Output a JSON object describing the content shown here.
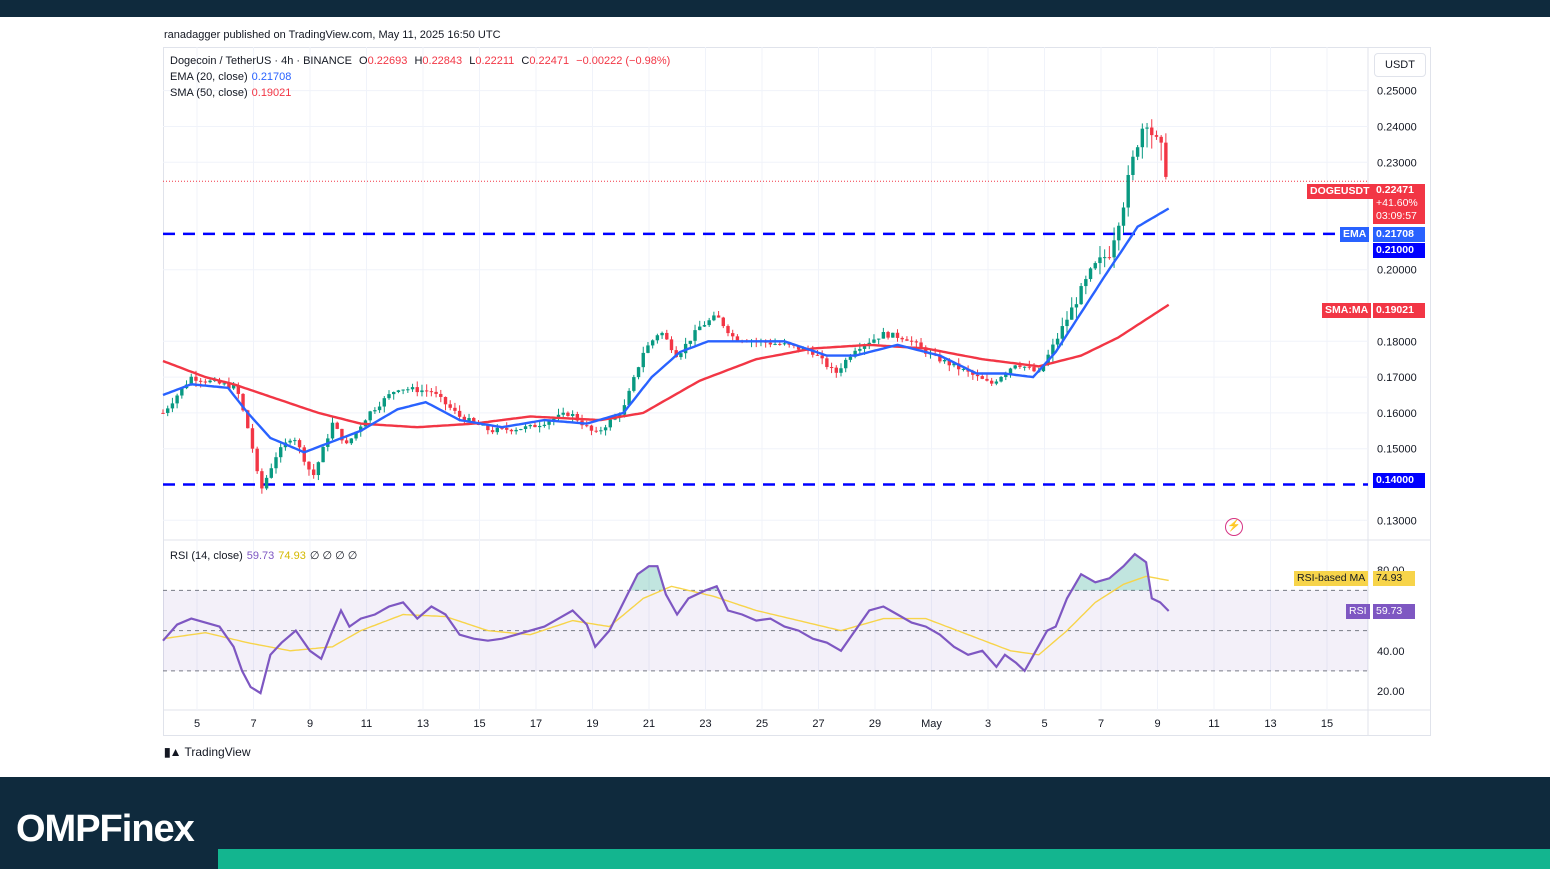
{
  "publisher": "ranadagger published on TradingView.com, May 11, 2025 16:50 UTC",
  "legend": {
    "symbol": "Dogecoin / TetherUS · 4h · BINANCE",
    "o_label": "O",
    "o": "0.22693",
    "h_label": "H",
    "h": "0.22843",
    "l_label": "L",
    "l": "0.22211",
    "c_label": "C",
    "c": "0.22471",
    "change": "−0.00222 (−0.98%)",
    "ema_label": "EMA (20, close)",
    "ema_value": "0.21708",
    "sma_label": "SMA (50, close)",
    "sma_value": "0.19021",
    "rsi_label": "RSI (14, close)",
    "rsi_value": "59.73",
    "rsi_ma_value": "74.93",
    "rsi_extra": "∅ ∅ ∅ ∅"
  },
  "currency": "USDT",
  "tags": {
    "symbol": "DOGEUSDT",
    "price": "0.22471",
    "pct": "+41.60%",
    "countdown": "03:09:57",
    "ema_name": "EMA",
    "ema": "0.21708",
    "level_high": "0.21000",
    "sma_name": "SMA:MA",
    "sma": "0.19021",
    "level_low": "0.14000",
    "rsi_ma_name": "RSI-based MA",
    "rsi_ma": "74.93",
    "rsi_name": "RSI",
    "rsi": "59.73"
  },
  "branding": {
    "tv": "TradingView",
    "footer": "OMPFinex"
  },
  "colors": {
    "up": "#089981",
    "down": "#f23645",
    "ema": "#2962ff",
    "sma": "#f23645",
    "rsi": "#7e57c2",
    "rsi_ma": "#f7d44a",
    "level": "#0000ff",
    "footer": "#0f2a3d",
    "accent": "#13b58f"
  },
  "chart_data": [
    {
      "type": "candlestick",
      "title": "Dogecoin / TetherUS · 4h · BINANCE",
      "ylim": [
        0.1245,
        0.2622
      ],
      "y_ticks": [
        "0.25000",
        "0.24000",
        "0.23000",
        "0.20000",
        "0.18000",
        "0.17000",
        "0.16000",
        "0.15000",
        "0.13000"
      ],
      "x_ticks": [
        "5",
        "7",
        "9",
        "11",
        "13",
        "15",
        "17",
        "19",
        "21",
        "23",
        "25",
        "27",
        "29",
        "May",
        "3",
        "5",
        "7",
        "9",
        "11",
        "13",
        "15"
      ],
      "horizontal_levels": [
        0.21,
        0.14
      ],
      "close_anchors": [
        {
          "t": 0.0,
          "v": 0.16
        },
        {
          "t": 1.0,
          "v": 0.17
        },
        {
          "t": 2.6,
          "v": 0.167
        },
        {
          "t": 3.1,
          "v": 0.153
        },
        {
          "t": 3.45,
          "v": 0.138
        },
        {
          "t": 4.0,
          "v": 0.148
        },
        {
          "t": 4.6,
          "v": 0.154
        },
        {
          "t": 5.3,
          "v": 0.142
        },
        {
          "t": 6.0,
          "v": 0.157
        },
        {
          "t": 6.5,
          "v": 0.151
        },
        {
          "t": 7.3,
          "v": 0.16
        },
        {
          "t": 8.3,
          "v": 0.167
        },
        {
          "t": 9.5,
          "v": 0.166
        },
        {
          "t": 10.5,
          "v": 0.159
        },
        {
          "t": 11.6,
          "v": 0.155
        },
        {
          "t": 13.0,
          "v": 0.156
        },
        {
          "t": 14.4,
          "v": 0.16
        },
        {
          "t": 15.3,
          "v": 0.154
        },
        {
          "t": 16.3,
          "v": 0.161
        },
        {
          "t": 17.0,
          "v": 0.177
        },
        {
          "t": 17.6,
          "v": 0.183
        },
        {
          "t": 18.2,
          "v": 0.176
        },
        {
          "t": 19.0,
          "v": 0.184
        },
        {
          "t": 19.6,
          "v": 0.187
        },
        {
          "t": 20.2,
          "v": 0.181
        },
        {
          "t": 21.0,
          "v": 0.18
        },
        {
          "t": 22.0,
          "v": 0.179
        },
        {
          "t": 23.0,
          "v": 0.177
        },
        {
          "t": 23.8,
          "v": 0.171
        },
        {
          "t": 24.5,
          "v": 0.178
        },
        {
          "t": 25.5,
          "v": 0.182
        },
        {
          "t": 26.3,
          "v": 0.181
        },
        {
          "t": 27.2,
          "v": 0.176
        },
        {
          "t": 28.3,
          "v": 0.172
        },
        {
          "t": 29.3,
          "v": 0.168
        },
        {
          "t": 30.2,
          "v": 0.174
        },
        {
          "t": 31.0,
          "v": 0.171
        },
        {
          "t": 31.6,
          "v": 0.18
        },
        {
          "t": 32.3,
          "v": 0.191
        },
        {
          "t": 32.9,
          "v": 0.2
        },
        {
          "t": 33.5,
          "v": 0.205
        },
        {
          "t": 34.0,
          "v": 0.219
        },
        {
          "t": 34.5,
          "v": 0.236
        },
        {
          "t": 34.8,
          "v": 0.243
        },
        {
          "t": 35.1,
          "v": 0.236
        },
        {
          "t": 35.4,
          "v": 0.232
        },
        {
          "t": 35.6,
          "v": 0.2247
        }
      ],
      "ema": [
        {
          "t": 0.0,
          "v": 0.165
        },
        {
          "t": 1.0,
          "v": 0.168
        },
        {
          "t": 2.3,
          "v": 0.167
        },
        {
          "t": 3.0,
          "v": 0.16
        },
        {
          "t": 3.8,
          "v": 0.153
        },
        {
          "t": 5.0,
          "v": 0.149
        },
        {
          "t": 6.0,
          "v": 0.152
        },
        {
          "t": 7.0,
          "v": 0.155
        },
        {
          "t": 8.3,
          "v": 0.161
        },
        {
          "t": 9.3,
          "v": 0.163
        },
        {
          "t": 10.5,
          "v": 0.158
        },
        {
          "t": 12.0,
          "v": 0.156
        },
        {
          "t": 13.5,
          "v": 0.158
        },
        {
          "t": 15.0,
          "v": 0.157
        },
        {
          "t": 16.3,
          "v": 0.16
        },
        {
          "t": 17.3,
          "v": 0.17
        },
        {
          "t": 18.3,
          "v": 0.177
        },
        {
          "t": 19.3,
          "v": 0.18
        },
        {
          "t": 20.5,
          "v": 0.18
        },
        {
          "t": 22.0,
          "v": 0.18
        },
        {
          "t": 23.5,
          "v": 0.176
        },
        {
          "t": 24.5,
          "v": 0.176
        },
        {
          "t": 26.0,
          "v": 0.179
        },
        {
          "t": 27.5,
          "v": 0.176
        },
        {
          "t": 28.8,
          "v": 0.171
        },
        {
          "t": 29.8,
          "v": 0.171
        },
        {
          "t": 30.8,
          "v": 0.17
        },
        {
          "t": 31.6,
          "v": 0.177
        },
        {
          "t": 32.5,
          "v": 0.188
        },
        {
          "t": 33.4,
          "v": 0.199
        },
        {
          "t": 34.0,
          "v": 0.206
        },
        {
          "t": 34.5,
          "v": 0.212
        },
        {
          "t": 35.6,
          "v": 0.2171
        }
      ],
      "sma": [
        {
          "t": 0.0,
          "v": 0.1745
        },
        {
          "t": 1.5,
          "v": 0.17
        },
        {
          "t": 2.5,
          "v": 0.168
        },
        {
          "t": 4.0,
          "v": 0.164
        },
        {
          "t": 5.5,
          "v": 0.16
        },
        {
          "t": 7.0,
          "v": 0.157
        },
        {
          "t": 9.0,
          "v": 0.156
        },
        {
          "t": 11.0,
          "v": 0.157
        },
        {
          "t": 13.0,
          "v": 0.159
        },
        {
          "t": 15.5,
          "v": 0.158
        },
        {
          "t": 17.0,
          "v": 0.16
        },
        {
          "t": 19.0,
          "v": 0.169
        },
        {
          "t": 21.0,
          "v": 0.175
        },
        {
          "t": 23.0,
          "v": 0.178
        },
        {
          "t": 25.0,
          "v": 0.179
        },
        {
          "t": 27.0,
          "v": 0.178
        },
        {
          "t": 29.0,
          "v": 0.175
        },
        {
          "t": 31.0,
          "v": 0.173
        },
        {
          "t": 32.5,
          "v": 0.176
        },
        {
          "t": 33.8,
          "v": 0.181
        },
        {
          "t": 35.6,
          "v": 0.1902
        }
      ]
    },
    {
      "type": "line",
      "title": "RSI (14, close)",
      "ylim": [
        10.6,
        95.0
      ],
      "y_ticks": [
        "80.00",
        "40.00",
        "20.00"
      ],
      "bands": [
        70,
        50,
        30
      ],
      "series": [
        {
          "name": "RSI",
          "values": [
            {
              "t": 0.0,
              "v": 45
            },
            {
              "t": 0.5,
              "v": 53
            },
            {
              "t": 1.0,
              "v": 56
            },
            {
              "t": 1.5,
              "v": 54
            },
            {
              "t": 2.0,
              "v": 52
            },
            {
              "t": 2.5,
              "v": 42
            },
            {
              "t": 2.8,
              "v": 30
            },
            {
              "t": 3.1,
              "v": 22
            },
            {
              "t": 3.45,
              "v": 19
            },
            {
              "t": 3.8,
              "v": 38
            },
            {
              "t": 4.2,
              "v": 44
            },
            {
              "t": 4.7,
              "v": 50
            },
            {
              "t": 5.2,
              "v": 40
            },
            {
              "t": 5.6,
              "v": 36
            },
            {
              "t": 6.0,
              "v": 50
            },
            {
              "t": 6.3,
              "v": 60
            },
            {
              "t": 6.6,
              "v": 52
            },
            {
              "t": 7.0,
              "v": 56
            },
            {
              "t": 7.5,
              "v": 58
            },
            {
              "t": 8.0,
              "v": 62
            },
            {
              "t": 8.5,
              "v": 64
            },
            {
              "t": 9.0,
              "v": 56
            },
            {
              "t": 9.5,
              "v": 62
            },
            {
              "t": 10.0,
              "v": 58
            },
            {
              "t": 10.5,
              "v": 48
            },
            {
              "t": 11.0,
              "v": 46
            },
            {
              "t": 11.5,
              "v": 45
            },
            {
              "t": 12.0,
              "v": 46
            },
            {
              "t": 12.5,
              "v": 48
            },
            {
              "t": 13.0,
              "v": 50
            },
            {
              "t": 13.5,
              "v": 52
            },
            {
              "t": 14.0,
              "v": 56
            },
            {
              "t": 14.5,
              "v": 60
            },
            {
              "t": 15.0,
              "v": 53
            },
            {
              "t": 15.3,
              "v": 42
            },
            {
              "t": 15.8,
              "v": 50
            },
            {
              "t": 16.3,
              "v": 64
            },
            {
              "t": 16.8,
              "v": 78
            },
            {
              "t": 17.2,
              "v": 82
            },
            {
              "t": 17.5,
              "v": 82
            },
            {
              "t": 17.8,
              "v": 68
            },
            {
              "t": 18.2,
              "v": 58
            },
            {
              "t": 18.6,
              "v": 66
            },
            {
              "t": 19.2,
              "v": 70
            },
            {
              "t": 19.6,
              "v": 72
            },
            {
              "t": 20.0,
              "v": 60
            },
            {
              "t": 20.5,
              "v": 58
            },
            {
              "t": 21.0,
              "v": 55
            },
            {
              "t": 21.5,
              "v": 56
            },
            {
              "t": 22.0,
              "v": 52
            },
            {
              "t": 22.5,
              "v": 50
            },
            {
              "t": 23.0,
              "v": 46
            },
            {
              "t": 23.5,
              "v": 44
            },
            {
              "t": 24.0,
              "v": 40
            },
            {
              "t": 24.5,
              "v": 50
            },
            {
              "t": 25.0,
              "v": 60
            },
            {
              "t": 25.5,
              "v": 62
            },
            {
              "t": 26.0,
              "v": 58
            },
            {
              "t": 26.5,
              "v": 54
            },
            {
              "t": 27.0,
              "v": 52
            },
            {
              "t": 27.5,
              "v": 48
            },
            {
              "t": 28.0,
              "v": 42
            },
            {
              "t": 28.5,
              "v": 38
            },
            {
              "t": 29.0,
              "v": 40
            },
            {
              "t": 29.5,
              "v": 32
            },
            {
              "t": 29.8,
              "v": 38
            },
            {
              "t": 30.2,
              "v": 34
            },
            {
              "t": 30.5,
              "v": 30
            },
            {
              "t": 30.9,
              "v": 40
            },
            {
              "t": 31.3,
              "v": 50
            },
            {
              "t": 31.6,
              "v": 52
            },
            {
              "t": 32.0,
              "v": 66
            },
            {
              "t": 32.5,
              "v": 78
            },
            {
              "t": 33.0,
              "v": 74
            },
            {
              "t": 33.5,
              "v": 76
            },
            {
              "t": 34.0,
              "v": 82
            },
            {
              "t": 34.4,
              "v": 88
            },
            {
              "t": 34.8,
              "v": 84
            },
            {
              "t": 35.0,
              "v": 66
            },
            {
              "t": 35.3,
              "v": 64
            },
            {
              "t": 35.6,
              "v": 59.73
            }
          ]
        },
        {
          "name": "RSI-based MA",
          "values": [
            {
              "t": 0.0,
              "v": 46
            },
            {
              "t": 1.5,
              "v": 49
            },
            {
              "t": 3.0,
              "v": 44
            },
            {
              "t": 4.5,
              "v": 40
            },
            {
              "t": 6.0,
              "v": 42
            },
            {
              "t": 7.0,
              "v": 50
            },
            {
              "t": 8.5,
              "v": 58
            },
            {
              "t": 10.0,
              "v": 57
            },
            {
              "t": 11.5,
              "v": 50
            },
            {
              "t": 13.0,
              "v": 48
            },
            {
              "t": 14.5,
              "v": 55
            },
            {
              "t": 15.8,
              "v": 52
            },
            {
              "t": 17.0,
              "v": 66
            },
            {
              "t": 18.0,
              "v": 72
            },
            {
              "t": 19.5,
              "v": 67
            },
            {
              "t": 21.0,
              "v": 60
            },
            {
              "t": 22.5,
              "v": 55
            },
            {
              "t": 24.0,
              "v": 50
            },
            {
              "t": 25.5,
              "v": 56
            },
            {
              "t": 27.0,
              "v": 56
            },
            {
              "t": 28.5,
              "v": 48
            },
            {
              "t": 30.0,
              "v": 40
            },
            {
              "t": 31.0,
              "v": 38
            },
            {
              "t": 32.0,
              "v": 50
            },
            {
              "t": 33.0,
              "v": 64
            },
            {
              "t": 34.0,
              "v": 73
            },
            {
              "t": 34.8,
              "v": 77
            },
            {
              "t": 35.6,
              "v": 74.93
            }
          ]
        }
      ]
    }
  ]
}
